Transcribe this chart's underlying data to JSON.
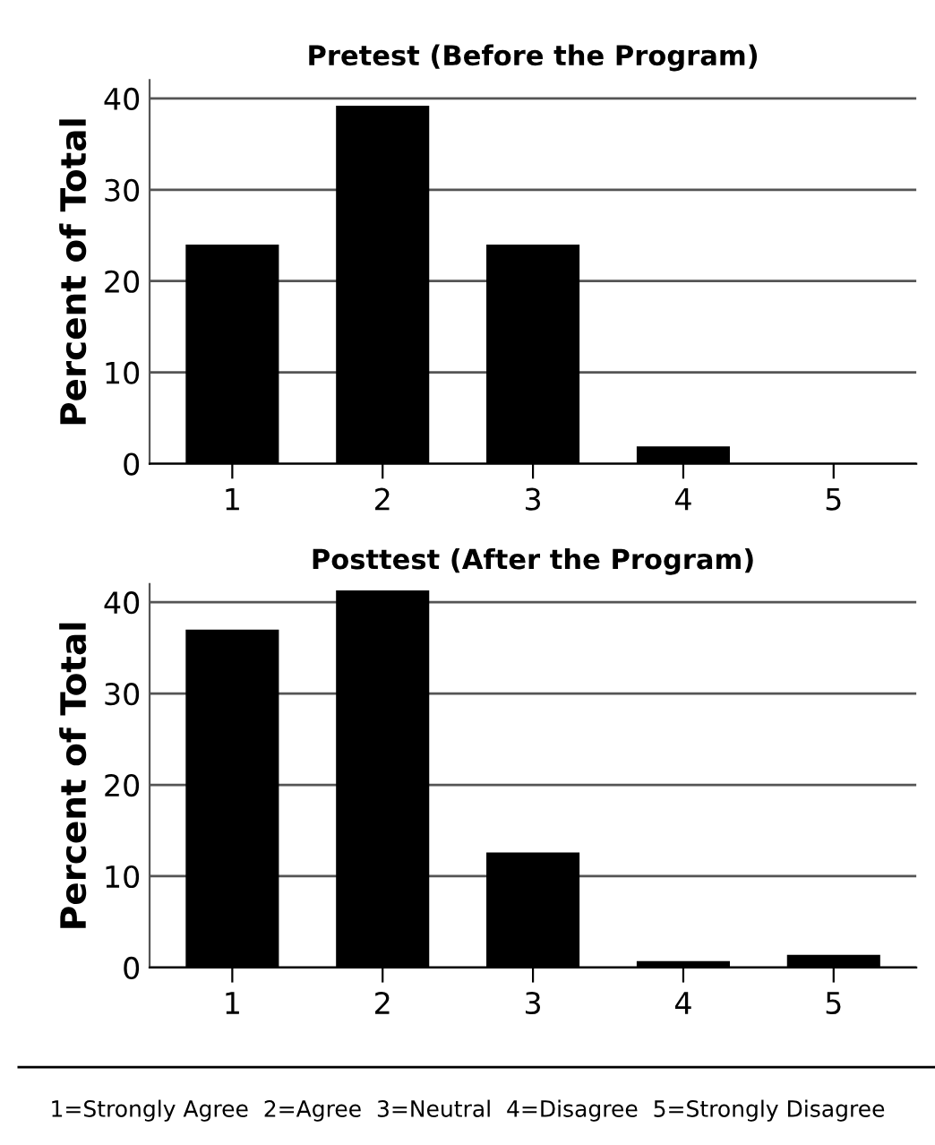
{
  "chart_data": [
    {
      "type": "bar",
      "title": "Pretest (Before the Program)",
      "ylabel": "Percent of Total",
      "categories": [
        "1",
        "2",
        "3",
        "4",
        "5"
      ],
      "values": [
        24,
        39.2,
        24,
        1.9,
        0
      ],
      "color": "#000000",
      "ylim": [
        0,
        42
      ],
      "yticks": [
        0,
        10,
        20,
        30,
        40
      ],
      "grid": "y"
    },
    {
      "type": "bar",
      "title": "Posttest (After the Program)",
      "ylabel": "Percent of Total",
      "categories": [
        "1",
        "2",
        "3",
        "4",
        "5"
      ],
      "values": [
        37,
        41.3,
        12.6,
        0.7,
        1.4
      ],
      "color": "#000000",
      "ylim": [
        0,
        42
      ],
      "yticks": [
        0,
        10,
        20,
        30,
        40
      ],
      "grid": "y",
      "annotations": [
        "1=Strongly Agree  2=Agree  3=Neutral  4=Disagree  5=Strongly Disagree"
      ]
    }
  ]
}
